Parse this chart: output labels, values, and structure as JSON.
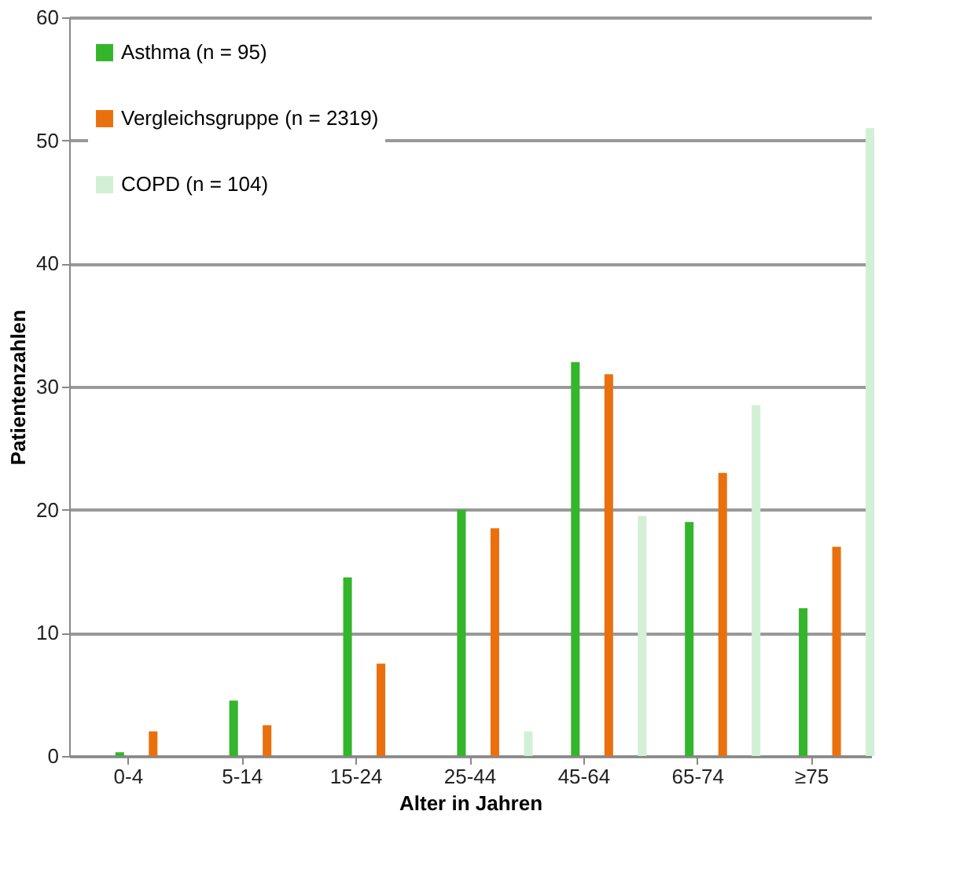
{
  "chart_data": {
    "type": "bar",
    "xlabel": "Alter in Jahren",
    "ylabel": "Patientenzahlen",
    "categories": [
      "0-4",
      "5-14",
      "15-24",
      "25-44",
      "45-64",
      "65-74",
      "≥75"
    ],
    "series": [
      {
        "name": "Asthma (n = 95)",
        "color": "#33b52c",
        "values": [
          0.3,
          4.5,
          14.5,
          20,
          32,
          19,
          12
        ]
      },
      {
        "name": "Vergleichsgruppe (n = 2319)",
        "color": "#ea700e",
        "values": [
          2,
          2.5,
          7.5,
          18.5,
          31,
          23,
          17
        ]
      },
      {
        "name": "COPD (n = 104)",
        "color": "#d2f0d6",
        "values": [
          0,
          0,
          0,
          2,
          19.5,
          28.5,
          51
        ]
      }
    ],
    "ylim": [
      0,
      60
    ],
    "yticks": [
      0,
      10,
      20,
      30,
      40,
      50,
      60
    ],
    "grid": "y",
    "legend": "top left"
  }
}
